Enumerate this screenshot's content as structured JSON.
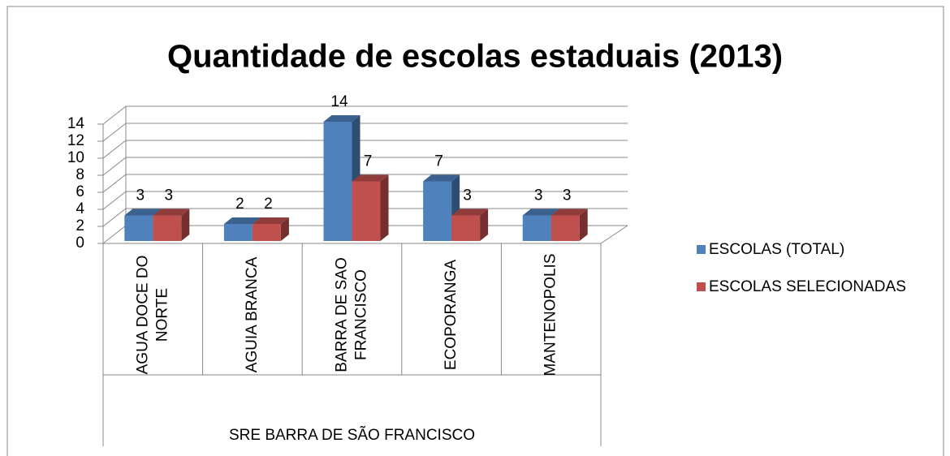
{
  "chart_data": {
    "type": "bar3d",
    "title": "Quantidade de escolas estaduais (2013)",
    "categories": [
      "AGUA DOCE DO NORTE",
      "AGUIA BRANCA",
      "BARRA DE SAO FRANCISCO",
      "ECOPORANGA",
      "MANTENOPOLIS"
    ],
    "group_label": "SRE BARRA DE SÃO FRANCISCO",
    "series": [
      {
        "name": "ESCOLAS (TOTAL)",
        "color": "#4f81bd",
        "values": [
          3,
          2,
          14,
          7,
          3
        ]
      },
      {
        "name": "ESCOLAS SELECIONADAS",
        "color": "#c0504d",
        "values": [
          3,
          2,
          7,
          3,
          3
        ]
      }
    ],
    "ylim": [
      0,
      14
    ],
    "yticks": [
      0,
      2,
      4,
      6,
      8,
      10,
      12,
      14
    ],
    "grid": true,
    "legend": "right"
  }
}
